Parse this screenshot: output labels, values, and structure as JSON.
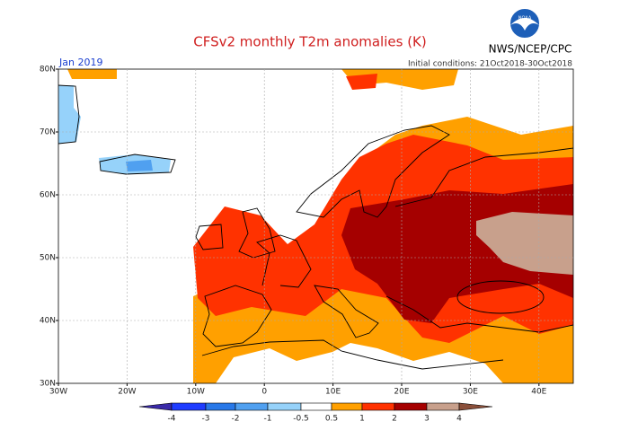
{
  "title": "CFSv2 monthly T2m anomalies (K)",
  "agency": "NWS/NCEP/CPC",
  "logo": "NOAA",
  "month": "Jan 2019",
  "initial_conditions": "Initial conditions: 21Oct2018-30Oct2018",
  "lon_labels": [
    "30W",
    "20W",
    "10W",
    "0",
    "10E",
    "20E",
    "30E",
    "40E"
  ],
  "lat_labels": [
    "80N",
    "70N",
    "60N",
    "50N",
    "40N",
    "30N"
  ],
  "colorbar": {
    "labels": [
      -4,
      -3,
      -2,
      -1,
      -0.5,
      0.5,
      1,
      2,
      3,
      4
    ],
    "colors": [
      "#3a2aa8",
      "#1e3cff",
      "#2878e8",
      "#50a0f0",
      "#96d2fa",
      "#ffffff",
      "#ffa000",
      "#ff3200",
      "#a50000",
      "#c8a08c",
      "#8a4f3a"
    ]
  }
}
